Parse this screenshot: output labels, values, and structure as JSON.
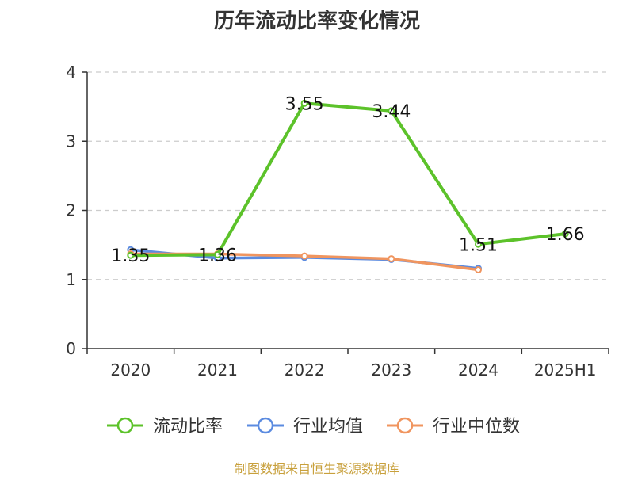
{
  "chart_data": {
    "type": "line",
    "title": "历年流动比率变化情况",
    "categories": [
      "2020",
      "2021",
      "2022",
      "2023",
      "2024",
      "2025H1"
    ],
    "ylim": [
      0,
      4
    ],
    "yticks": [
      "0",
      "1",
      "2",
      "3",
      "4"
    ],
    "grid": true,
    "legend_position": "bottom",
    "series": [
      {
        "name": "流动比率",
        "color": "#5cc22a",
        "values": [
          1.35,
          1.36,
          3.55,
          3.44,
          1.51,
          1.66
        ],
        "labels": [
          "1.35",
          "1.36",
          "3.55",
          "3.44",
          "1.51",
          "1.66"
        ]
      },
      {
        "name": "行业均值",
        "color": "#5b8be0",
        "values": [
          1.43,
          1.31,
          1.32,
          1.29,
          1.16,
          null
        ]
      },
      {
        "name": "行业中位数",
        "color": "#f0955f",
        "values": [
          1.37,
          1.37,
          1.34,
          1.3,
          1.14,
          null
        ]
      }
    ]
  },
  "footer": {
    "source": "制图数据来自恒生聚源数据库"
  }
}
